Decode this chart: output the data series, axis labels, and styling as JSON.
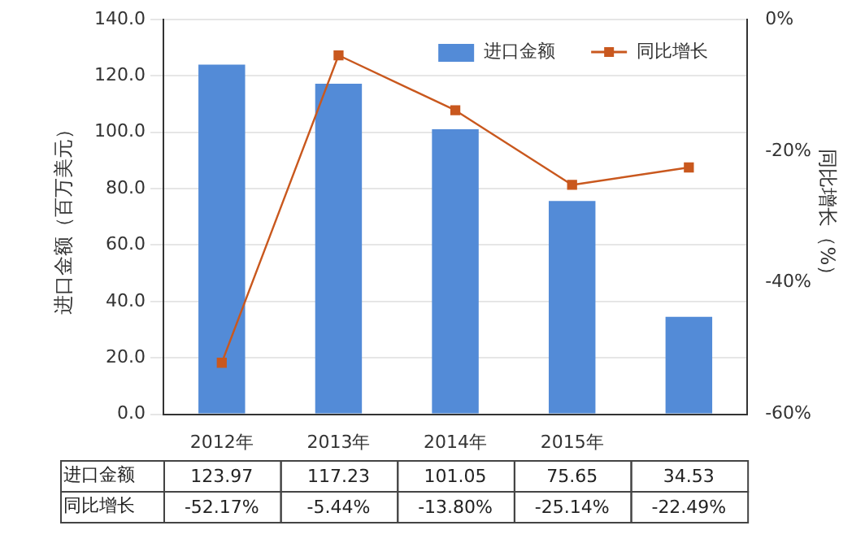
{
  "chart_data": {
    "type": "bar",
    "ylabel": "进口金额（百万美元）",
    "y2label": "同比增长（%）",
    "categories": [
      "2012年",
      "2013年",
      "2014年",
      "2015年",
      null
    ],
    "series": [
      {
        "name": "进口金额",
        "color": "#538bd7",
        "values": [
          123.97,
          117.23,
          101.05,
          75.65,
          34.53
        ],
        "value_labels": [
          "123.97",
          "117.23",
          "101.05",
          "75.65",
          "34.53"
        ]
      },
      {
        "name": "同比增长",
        "type": "line",
        "axis": "y2",
        "color": "#c9581e",
        "marker": "square",
        "values": [
          -52.17,
          -5.44,
          -13.8,
          -25.14,
          -22.49
        ],
        "value_labels": [
          "-52.17%",
          "-5.44%",
          "-13.80%",
          "-25.14%",
          "-22.49%"
        ]
      }
    ],
    "ylim": [
      0,
      140
    ],
    "yticks": [
      {
        "value": 0,
        "label": "0.0"
      },
      {
        "value": 20,
        "label": "20.0"
      },
      {
        "value": 40,
        "label": "40.0"
      },
      {
        "value": 60,
        "label": "60.0"
      },
      {
        "value": 80,
        "label": "80.0"
      },
      {
        "value": 100,
        "label": "100.0"
      },
      {
        "value": 120,
        "label": "120.0"
      },
      {
        "value": 140,
        "label": "140.0"
      }
    ],
    "y2lim": [
      -60,
      0
    ],
    "y2ticks": [
      {
        "value": -60,
        "label": "-60%"
      },
      {
        "value": -40,
        "label": "-40%"
      },
      {
        "value": -20,
        "label": "-20%"
      },
      {
        "value": 0,
        "label": "0%"
      }
    ],
    "grid": "y",
    "legend": "top right"
  }
}
